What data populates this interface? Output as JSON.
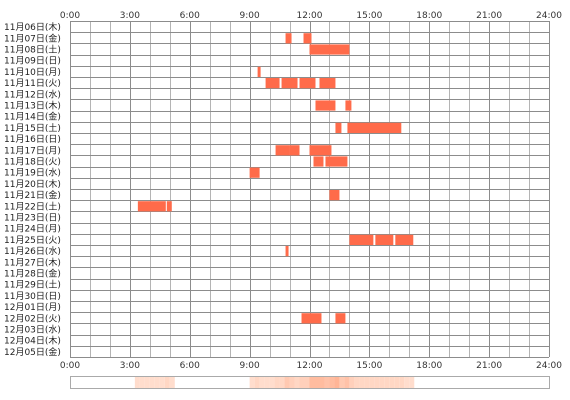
{
  "chart_data": {
    "type": "heatmap",
    "x_tick_labels": [
      "0:00",
      "3:00",
      "6:00",
      "9:00",
      "12:00",
      "15:00",
      "18:00",
      "21:00",
      "24:00"
    ],
    "xlim": [
      0,
      24
    ],
    "grid": true,
    "bar_color": "#ff6b4a",
    "summary_colors": {
      "light": "#ffe4d6",
      "dark": "#ffb596"
    },
    "days": [
      {
        "label": "11月06日(木)",
        "intervals": []
      },
      {
        "label": "11月07日(金)",
        "intervals": [
          [
            10.8,
            11.1
          ],
          [
            11.7,
            12.1
          ]
        ]
      },
      {
        "label": "11月08日(土)",
        "intervals": [
          [
            12.0,
            14.0
          ]
        ]
      },
      {
        "label": "11月09日(日)",
        "intervals": []
      },
      {
        "label": "11月10日(月)",
        "intervals": [
          [
            9.4,
            9.55
          ]
        ]
      },
      {
        "label": "11月11日(火)",
        "intervals": [
          [
            9.8,
            10.5
          ],
          [
            10.6,
            11.4
          ],
          [
            11.5,
            12.3
          ],
          [
            12.5,
            13.3
          ]
        ]
      },
      {
        "label": "11月12日(水)",
        "intervals": []
      },
      {
        "label": "11月13日(木)",
        "intervals": [
          [
            12.3,
            13.3
          ],
          [
            13.8,
            14.1
          ]
        ]
      },
      {
        "label": "11月14日(金)",
        "intervals": []
      },
      {
        "label": "11月15日(土)",
        "intervals": [
          [
            13.3,
            13.6
          ],
          [
            13.9,
            16.6
          ]
        ]
      },
      {
        "label": "11月16日(日)",
        "intervals": []
      },
      {
        "label": "11月17日(月)",
        "intervals": [
          [
            10.3,
            11.0
          ],
          [
            11.0,
            11.5
          ],
          [
            12.0,
            13.1
          ]
        ]
      },
      {
        "label": "11月18日(火)",
        "intervals": [
          [
            12.2,
            12.7
          ],
          [
            12.8,
            13.9
          ]
        ]
      },
      {
        "label": "11月19日(水)",
        "intervals": [
          [
            9.0,
            9.5
          ]
        ]
      },
      {
        "label": "11月20日(木)",
        "intervals": []
      },
      {
        "label": "11月21日(金)",
        "intervals": [
          [
            13.0,
            13.5
          ]
        ]
      },
      {
        "label": "11月22日(土)",
        "intervals": [
          [
            3.4,
            4.8
          ],
          [
            4.85,
            5.1
          ]
        ]
      },
      {
        "label": "11月23日(日)",
        "intervals": []
      },
      {
        "label": "11月24日(月)",
        "intervals": []
      },
      {
        "label": "11月25日(火)",
        "intervals": [
          [
            14.0,
            15.2
          ],
          [
            15.3,
            16.2
          ],
          [
            16.3,
            17.2
          ]
        ]
      },
      {
        "label": "11月26日(水)",
        "intervals": [
          [
            10.8,
            10.95
          ]
        ]
      },
      {
        "label": "11月27日(木)",
        "intervals": []
      },
      {
        "label": "11月28日(金)",
        "intervals": []
      },
      {
        "label": "11月29日(土)",
        "intervals": []
      },
      {
        "label": "11月30日(日)",
        "intervals": []
      },
      {
        "label": "12月01日(月)",
        "intervals": []
      },
      {
        "label": "12月02日(火)",
        "intervals": [
          [
            11.6,
            12.6
          ],
          [
            13.3,
            13.8
          ]
        ]
      },
      {
        "label": "12月03日(水)",
        "intervals": []
      },
      {
        "label": "12月04日(木)",
        "intervals": []
      },
      {
        "label": "12月05日(金)",
        "intervals": []
      }
    ]
  }
}
